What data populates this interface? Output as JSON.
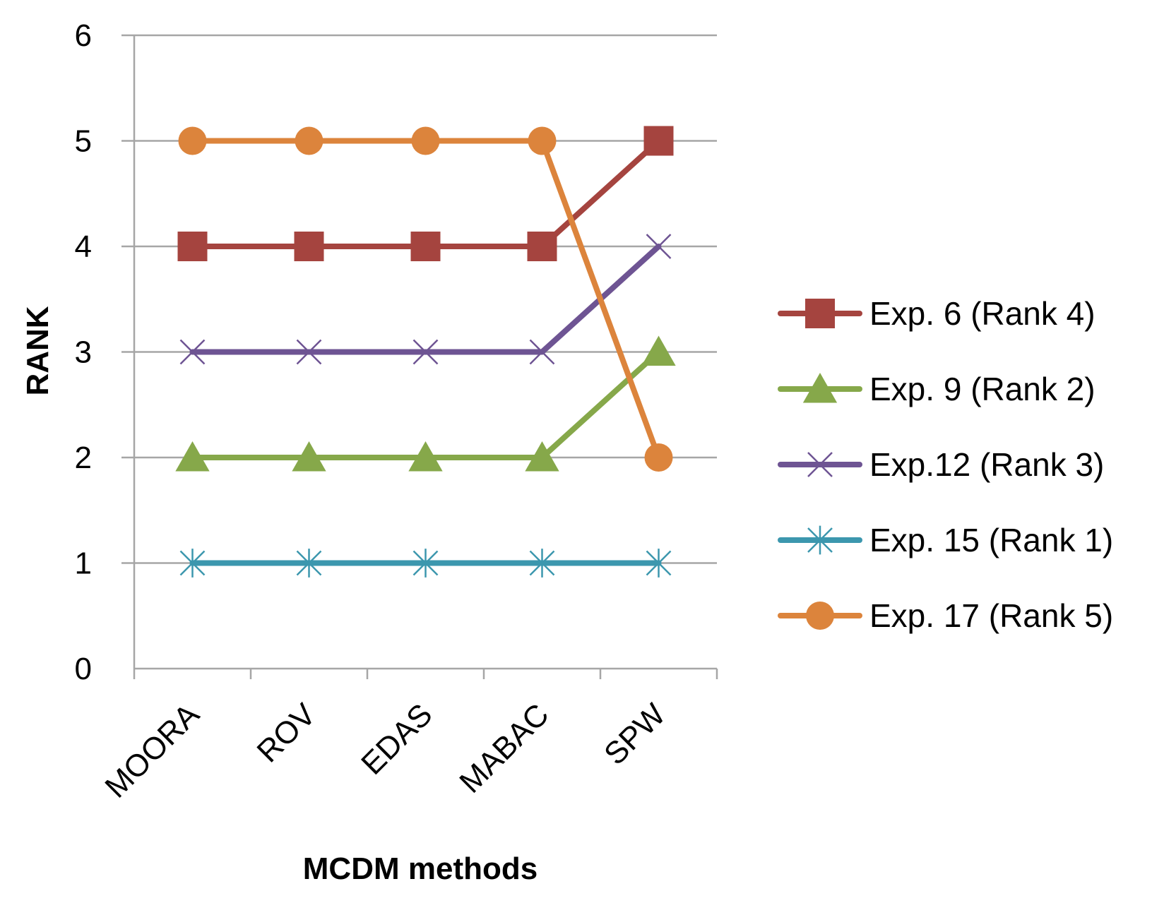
{
  "chart_data": {
    "type": "line",
    "title": "",
    "xlabel": "MCDM methods",
    "ylabel": "RANK",
    "categories": [
      "MOORA",
      "ROV",
      "EDAS",
      "MABAC",
      "SPW"
    ],
    "ylim": [
      0,
      6
    ],
    "yticks": [
      "0",
      "1",
      "2",
      "3",
      "4",
      "5",
      "6"
    ],
    "grid": true,
    "legend_position": "right",
    "series": [
      {
        "name": "Exp. 6 (Rank 4)",
        "values": [
          4,
          4,
          4,
          4,
          5
        ],
        "color": "#A5443F",
        "marker": "square"
      },
      {
        "name": "Exp. 9 (Rank 2)",
        "values": [
          2,
          2,
          2,
          2,
          3
        ],
        "color": "#86A84A",
        "marker": "triangle"
      },
      {
        "name": "Exp.12 (Rank 3)",
        "values": [
          3,
          3,
          3,
          3,
          4
        ],
        "color": "#6E5493",
        "marker": "x"
      },
      {
        "name": "Exp. 15 (Rank 1)",
        "values": [
          1,
          1,
          1,
          1,
          1
        ],
        "color": "#3C97AE",
        "marker": "star"
      },
      {
        "name": "Exp. 17 (Rank 5)",
        "values": [
          5,
          5,
          5,
          5,
          2
        ],
        "color": "#DC843C",
        "marker": "circle"
      }
    ]
  }
}
